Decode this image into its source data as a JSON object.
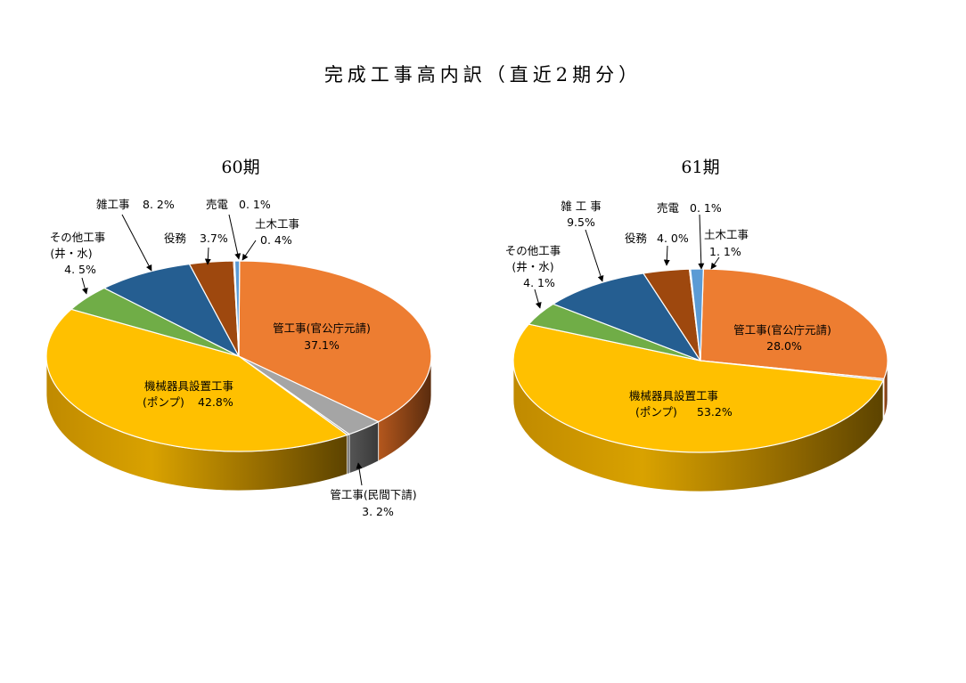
{
  "title": "完成工事高内訳（直近2期分）",
  "chart_data": [
    {
      "type": "pie",
      "title": "60期",
      "unit": "%",
      "slices": [
        {
          "label": "管工事(官公庁元請)",
          "value": 37.1,
          "display": "37.1%",
          "color": "#ED7D31"
        },
        {
          "label": "管工事(民間下請)",
          "value": 3.2,
          "display": "3. 2%",
          "color": "#A5A5A5"
        },
        {
          "label": "",
          "value": 0.2,
          "display": "",
          "color": "#7F7F7F"
        },
        {
          "label": "機械器具設置工事\n(ポンプ)",
          "value": 42.8,
          "display": "42.8%",
          "color": "#FFC000"
        },
        {
          "label": "その他工事\n(井・水)",
          "value": 4.5,
          "display": "4. 5%",
          "color": "#70AD47"
        },
        {
          "label": "雑工事",
          "value": 8.2,
          "display": "8. 2%",
          "color": "#255E91"
        },
        {
          "label": "役務",
          "value": 3.7,
          "display": "3.7%",
          "color": "#9E480E"
        },
        {
          "label": "売電",
          "value": 0.1,
          "display": "0. 1%",
          "color": "#264478"
        },
        {
          "label": "土木工事",
          "value": 0.4,
          "display": "0. 4%",
          "color": "#5B9BD5"
        }
      ]
    },
    {
      "type": "pie",
      "title": "61期",
      "unit": "%",
      "slices": [
        {
          "label": "管工事(官公庁元請)",
          "value": 28.0,
          "display": "28.0%",
          "color": "#ED7D31"
        },
        {
          "label": "",
          "value": 0.3,
          "display": "",
          "color": "#A5A5A5"
        },
        {
          "label": "機械器具設置工事\n(ポンプ)",
          "value": 53.2,
          "display": "53.2%",
          "color": "#FFC000"
        },
        {
          "label": "その他工事\n(井・水)",
          "value": 4.1,
          "display": "4. 1%",
          "color": "#70AD47"
        },
        {
          "label": "雑工事",
          "value": 9.5,
          "display": "9.5%",
          "color": "#255E91"
        },
        {
          "label": "役務",
          "value": 4.0,
          "display": "4. 0%",
          "color": "#9E480E"
        },
        {
          "label": "売電",
          "value": 0.1,
          "display": "0. 1%",
          "color": "#264478"
        },
        {
          "label": "土木工事",
          "value": 1.1,
          "display": "1. 1%",
          "color": "#5B9BD5"
        }
      ]
    }
  ],
  "labels": {
    "c60": {
      "title": "60期",
      "kan_kankocho": "管工事(官公庁元請)",
      "kan_kankocho_val": "37.1%",
      "kikai": "機械器具設置工事",
      "kikai_sub": "(ポンプ)",
      "kikai_val": "42.8%",
      "kan_minkan": "管工事(民間下請)",
      "kan_minkan_val": "3. 2%",
      "sonota": "その他工事",
      "sonota_sub": "(井・水)",
      "sonota_val": "4. 5%",
      "zatsu": "雑工事",
      "zatsu_val": "8. 2%",
      "ekimu": "役務",
      "ekimu_val": "3.7%",
      "baiden": "売電",
      "baiden_val": "0. 1%",
      "doboku": "土木工事",
      "doboku_val": "0. 4%"
    },
    "c61": {
      "title": "61期",
      "kan_kankocho": "管工事(官公庁元請)",
      "kan_kankocho_val": "28.0%",
      "kikai": "機械器具設置工事",
      "kikai_sub": "(ポンプ)",
      "kikai_val": "53.2%",
      "sonota": "その他工事",
      "sonota_sub": "(井・水)",
      "sonota_val": "4. 1%",
      "zatsu": "雑 工 事",
      "zatsu_val": "9.5%",
      "ekimu": "役務",
      "ekimu_val": "4. 0%",
      "baiden": "売電",
      "baiden_val": "0. 1%",
      "doboku": "土木工事",
      "doboku_val": "1. 1%"
    }
  }
}
